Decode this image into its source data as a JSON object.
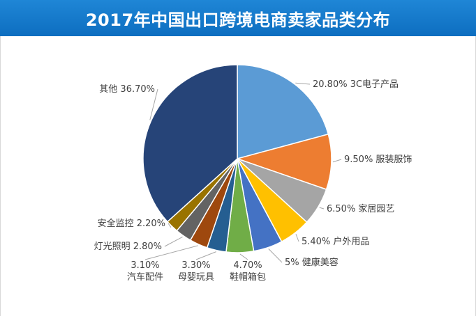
{
  "chart_data": {
    "type": "pie",
    "title": "2017年中国出口跨境电商卖家品类分布",
    "slices": [
      {
        "category": "3C电子产品",
        "value": 20.8,
        "value_label": "20.80%",
        "color": "#5b9bd5"
      },
      {
        "category": "服装服饰",
        "value": 9.5,
        "value_label": "9.50%",
        "color": "#ed7d31"
      },
      {
        "category": "家居园艺",
        "value": 6.5,
        "value_label": "6.50%",
        "color": "#a5a5a5"
      },
      {
        "category": "户外用品",
        "value": 5.4,
        "value_label": "5.40%",
        "color": "#ffc000"
      },
      {
        "category": "健康美容",
        "value": 5.0,
        "value_label": "5%",
        "color": "#4472c4"
      },
      {
        "category": "鞋帽箱包",
        "value": 4.7,
        "value_label": "4.70%",
        "color": "#70ad47"
      },
      {
        "category": "母婴玩具",
        "value": 3.3,
        "value_label": "3.30%",
        "color": "#255e91"
      },
      {
        "category": "汽车配件",
        "value": 3.1,
        "value_label": "3.10%",
        "color": "#9e480e"
      },
      {
        "category": "灯光照明",
        "value": 2.8,
        "value_label": "2.80%",
        "color": "#636363"
      },
      {
        "category": "安全监控",
        "value": 2.2,
        "value_label": "2.20%",
        "color": "#997300"
      },
      {
        "category": "其他",
        "value": 36.7,
        "value_label": "36.70%",
        "color": "#264478"
      }
    ]
  }
}
